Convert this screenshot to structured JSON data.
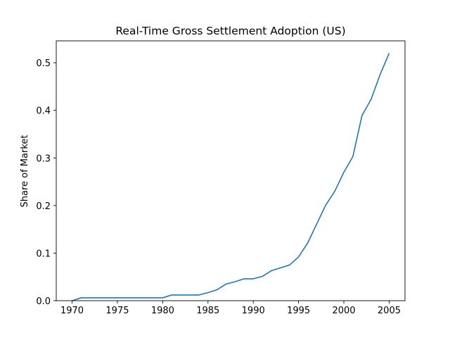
{
  "chart_data": {
    "type": "line",
    "title": "Real-Time Gross Settlement Adoption (US)",
    "xlabel": "",
    "ylabel": "Share of Market",
    "xlim": [
      1968.25,
      2006.75
    ],
    "ylim": [
      0,
      0.546
    ],
    "x_ticks": [
      1970,
      1975,
      1980,
      1985,
      1990,
      1995,
      2000,
      2005
    ],
    "y_ticks": [
      0.0,
      0.1,
      0.2,
      0.3,
      0.4,
      0.5
    ],
    "y_tick_labels": [
      "0.0",
      "0.1",
      "0.2",
      "0.3",
      "0.4",
      "0.5"
    ],
    "grid": false,
    "legend": "none",
    "series": [
      {
        "color": "#1f77b4",
        "x": [
          1970,
          1971,
          1972,
          1973,
          1974,
          1975,
          1976,
          1977,
          1978,
          1979,
          1980,
          1981,
          1982,
          1983,
          1984,
          1985,
          1986,
          1987,
          1988,
          1989,
          1990,
          1991,
          1992,
          1993,
          1994,
          1995,
          1996,
          1997,
          1998,
          1999,
          2000,
          2001,
          2002,
          2003,
          2004,
          2005
        ],
        "y": [
          0.0,
          0.006,
          0.006,
          0.006,
          0.006,
          0.006,
          0.006,
          0.006,
          0.006,
          0.006,
          0.006,
          0.012,
          0.012,
          0.012,
          0.012,
          0.017,
          0.023,
          0.035,
          0.04,
          0.046,
          0.046,
          0.051,
          0.063,
          0.069,
          0.075,
          0.092,
          0.121,
          0.161,
          0.201,
          0.23,
          0.27,
          0.303,
          0.389,
          0.423,
          0.475,
          0.52
        ]
      }
    ]
  }
}
